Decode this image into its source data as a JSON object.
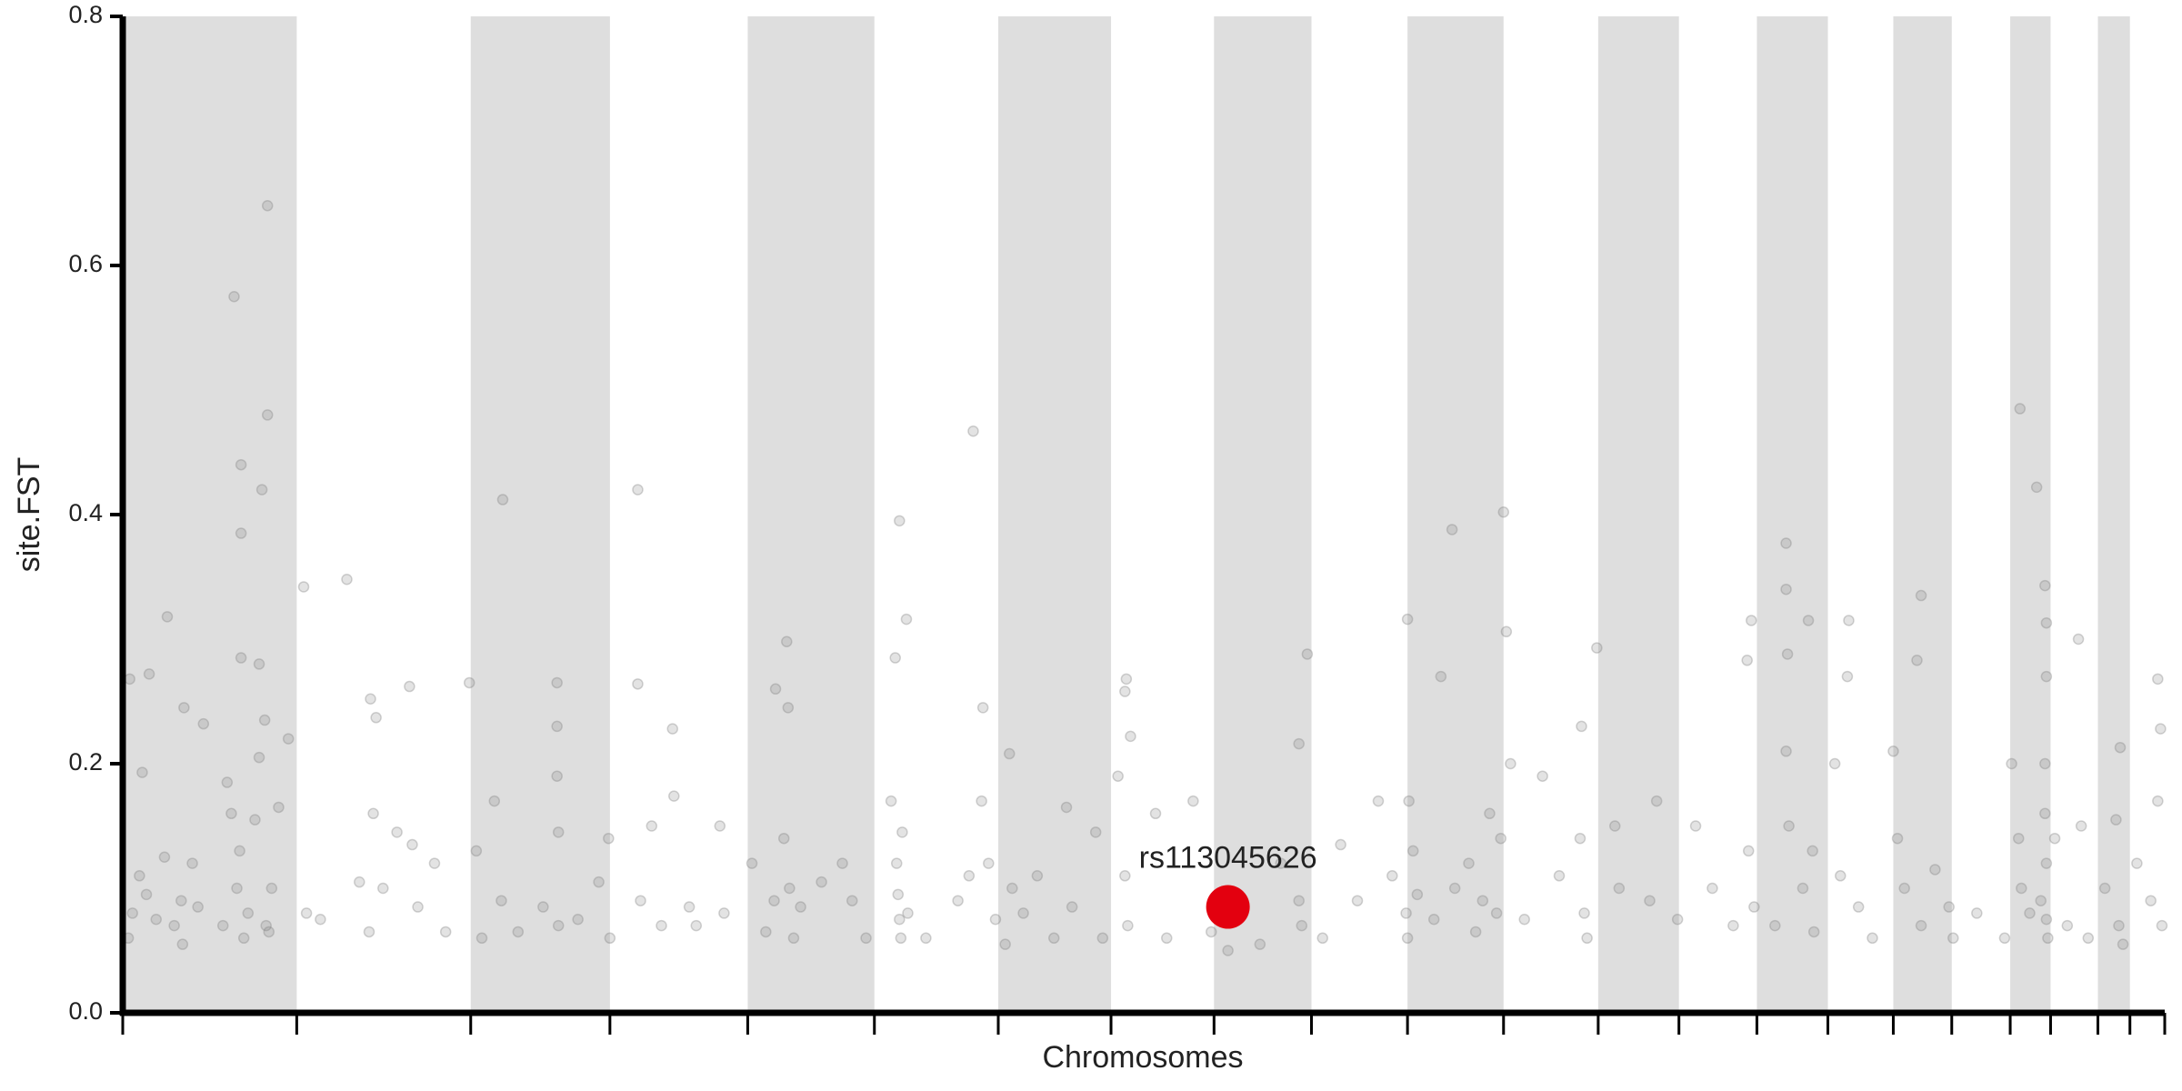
{
  "chart_data": {
    "type": "scatter",
    "xlabel": "Chromosomes",
    "ylabel": "site.FST",
    "xlim": [
      88,
      1555
    ],
    "ylim": [
      0,
      0.8
    ],
    "xticks": [
      88,
      213,
      338,
      438,
      537,
      628,
      717,
      798,
      872,
      942,
      1011,
      1080,
      1148,
      1206,
      1262,
      1313,
      1360,
      1402,
      1444,
      1473,
      1507,
      1530,
      1555
    ],
    "yticks": [
      {
        "value": 0,
        "label": "0.0"
      },
      0.2,
      0.4,
      0.6,
      0.8
    ],
    "band_color": "#dedede",
    "series": [
      {
        "color": "#808080",
        "x": [
          168,
          192,
          192,
          173,
          173,
          188,
          173,
          186,
          120,
          93,
          107,
          102,
          132,
          146,
          218,
          249,
          266,
          294,
          270,
          337,
          361,
          400,
          400,
          458,
          458,
          483,
          484,
          557,
          565,
          566,
          646,
          651,
          643,
          699,
          706,
          725,
          809,
          808,
          812,
          939,
          933,
          1011,
          1035,
          1043,
          1080,
          1082,
          1147,
          1136,
          1258,
          1255,
          1283,
          1283,
          1284,
          1299,
          1327,
          1328,
          1380,
          1377,
          1451,
          1463,
          1469,
          1470,
          1470,
          1493,
          1550,
          1552,
          1523,
          92,
          95,
          100,
          105,
          112,
          118,
          125,
          130,
          131,
          138,
          142,
          160,
          163,
          166,
          170,
          172,
          175,
          178,
          183,
          186,
          190,
          191,
          193,
          195,
          200,
          207,
          220,
          230,
          258,
          265,
          268,
          275,
          285,
          296,
          300,
          312,
          320,
          342,
          346,
          355,
          360,
          372,
          390,
          400,
          401,
          401,
          415,
          430,
          437,
          438,
          460,
          468,
          475,
          495,
          500,
          517,
          520,
          540,
          550,
          556,
          563,
          567,
          570,
          575,
          590,
          605,
          612,
          622,
          640,
          644,
          645,
          646,
          647,
          648,
          652,
          665,
          688,
          696,
          705,
          710,
          715,
          722,
          727,
          735,
          745,
          757,
          766,
          770,
          787,
          792,
          803,
          808,
          810,
          830,
          838,
          857,
          870,
          882,
          905,
          920,
          933,
          935,
          950,
          963,
          975,
          990,
          1000,
          1010,
          1011,
          1012,
          1015,
          1018,
          1030,
          1045,
          1055,
          1060,
          1065,
          1070,
          1075,
          1078,
          1085,
          1095,
          1108,
          1120,
          1135,
          1138,
          1140,
          1160,
          1163,
          1185,
          1190,
          1205,
          1218,
          1230,
          1245,
          1256,
          1260,
          1275,
          1283,
          1285,
          1295,
          1302,
          1303,
          1318,
          1322,
          1335,
          1345,
          1360,
          1363,
          1368,
          1380,
          1390,
          1400,
          1403,
          1420,
          1440,
          1445,
          1450,
          1452,
          1458,
          1466,
          1469,
          1469,
          1470,
          1470,
          1471,
          1476,
          1485,
          1495,
          1500,
          1512,
          1520,
          1522,
          1525,
          1535,
          1545,
          1550,
          1553
        ],
        "values": [
          0.575,
          0.648,
          0.48,
          0.44,
          0.385,
          0.42,
          0.285,
          0.28,
          0.318,
          0.268,
          0.272,
          0.193,
          0.245,
          0.232,
          0.342,
          0.348,
          0.252,
          0.262,
          0.237,
          0.265,
          0.412,
          0.265,
          0.23,
          0.42,
          0.264,
          0.228,
          0.174,
          0.26,
          0.298,
          0.245,
          0.395,
          0.316,
          0.285,
          0.467,
          0.245,
          0.208,
          0.268,
          0.258,
          0.222,
          0.288,
          0.216,
          0.316,
          0.27,
          0.388,
          0.402,
          0.306,
          0.293,
          0.23,
          0.315,
          0.283,
          0.377,
          0.34,
          0.288,
          0.315,
          0.27,
          0.315,
          0.335,
          0.283,
          0.485,
          0.422,
          0.343,
          0.313,
          0.27,
          0.3,
          0.268,
          0.228,
          0.213,
          0.06,
          0.08,
          0.11,
          0.095,
          0.075,
          0.125,
          0.07,
          0.09,
          0.055,
          0.12,
          0.085,
          0.07,
          0.185,
          0.16,
          0.1,
          0.13,
          0.06,
          0.08,
          0.155,
          0.205,
          0.235,
          0.07,
          0.065,
          0.1,
          0.165,
          0.22,
          0.08,
          0.075,
          0.105,
          0.065,
          0.16,
          0.1,
          0.145,
          0.135,
          0.085,
          0.12,
          0.065,
          0.13,
          0.06,
          0.17,
          0.09,
          0.065,
          0.085,
          0.19,
          0.145,
          0.07,
          0.075,
          0.105,
          0.14,
          0.06,
          0.09,
          0.15,
          0.07,
          0.085,
          0.07,
          0.15,
          0.08,
          0.12,
          0.065,
          0.09,
          0.14,
          0.1,
          0.06,
          0.085,
          0.105,
          0.12,
          0.09,
          0.06,
          0.17,
          0.12,
          0.095,
          0.075,
          0.06,
          0.145,
          0.08,
          0.06,
          0.09,
          0.11,
          0.17,
          0.12,
          0.075,
          0.055,
          0.1,
          0.08,
          0.11,
          0.06,
          0.165,
          0.085,
          0.145,
          0.06,
          0.19,
          0.11,
          0.07,
          0.16,
          0.06,
          0.17,
          0.065,
          0.05,
          0.055,
          0.12,
          0.09,
          0.07,
          0.06,
          0.135,
          0.09,
          0.17,
          0.11,
          0.08,
          0.06,
          0.17,
          0.13,
          0.095,
          0.075,
          0.1,
          0.12,
          0.065,
          0.09,
          0.16,
          0.08,
          0.14,
          0.2,
          0.075,
          0.19,
          0.11,
          0.14,
          0.08,
          0.06,
          0.15,
          0.1,
          0.09,
          0.17,
          0.075,
          0.15,
          0.1,
          0.07,
          0.13,
          0.085,
          0.07,
          0.21,
          0.15,
          0.1,
          0.13,
          0.065,
          0.2,
          0.11,
          0.085,
          0.06,
          0.21,
          0.14,
          0.1,
          0.07,
          0.115,
          0.085,
          0.06,
          0.08,
          0.06,
          0.2,
          0.14,
          0.1,
          0.08,
          0.09,
          0.2,
          0.16,
          0.12,
          0.075,
          0.06,
          0.14,
          0.07,
          0.15,
          0.06,
          0.1,
          0.155,
          0.07,
          0.055,
          0.12,
          0.09,
          0.17,
          0.07
        ]
      }
    ],
    "highlight": {
      "label": "rs113045626",
      "x": 882,
      "value": 0.085,
      "color": "#e3000f"
    }
  }
}
